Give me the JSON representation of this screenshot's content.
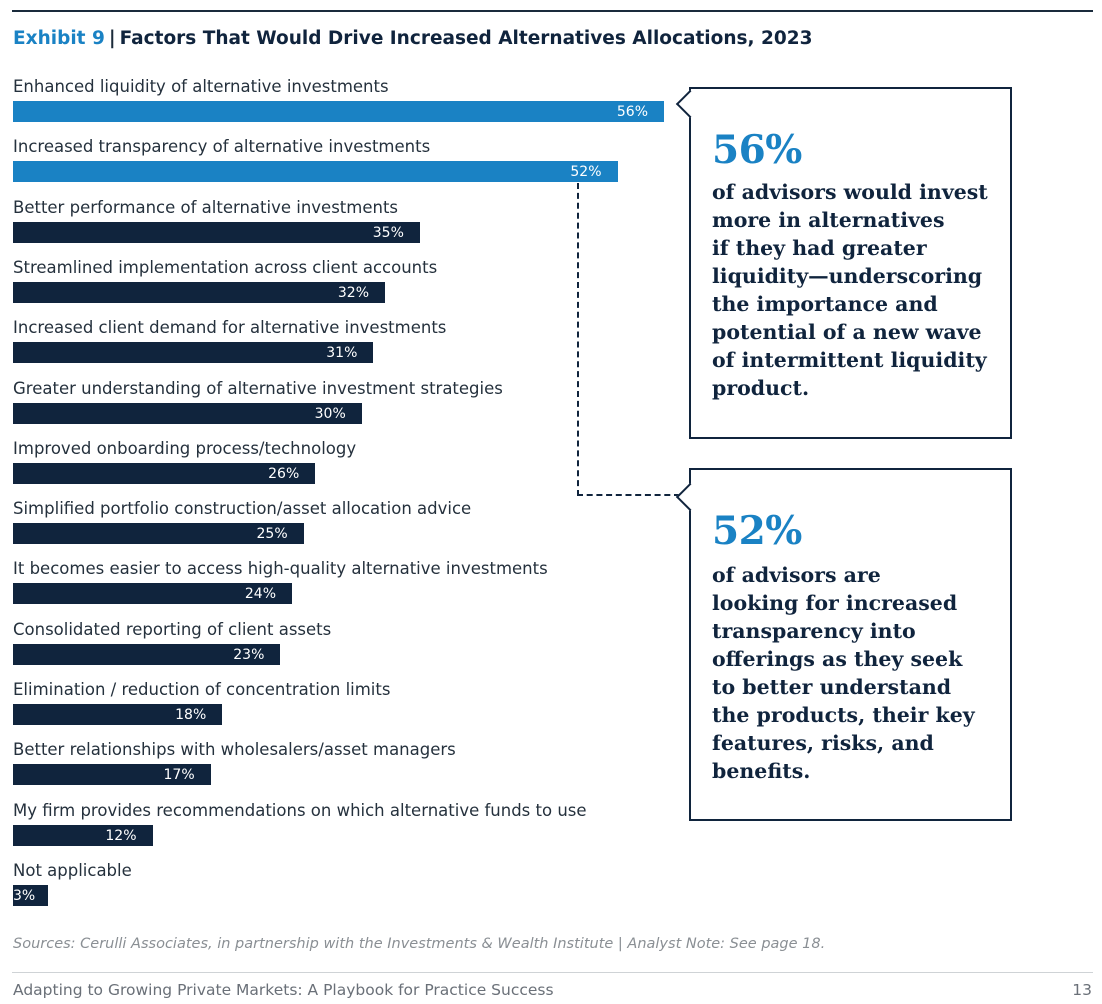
{
  "header": {
    "exhibit": "Exhibit 9",
    "separator": "|",
    "title": "Factors That Would Drive Increased Alternatives Allocations, 2023"
  },
  "chart_data": {
    "type": "bar",
    "orientation": "horizontal",
    "categories": [
      "Enhanced liquidity of alternative investments",
      "Increased transparency of alternative investments",
      "Better performance of alternative investments",
      "Streamlined implementation across client accounts",
      "Increased client demand for alternative investments",
      "Greater understanding of alternative investment strategies",
      "Improved onboarding process/technology",
      "Simplified portfolio construction/asset allocation advice",
      "It becomes easier to access high-quality alternative investments",
      "Consolidated reporting of client assets",
      "Elimination / reduction of concentration limits",
      "Better relationships with wholesalers/asset managers",
      "My firm provides recommendations on which alternative funds to use",
      "Not applicable"
    ],
    "values": [
      56,
      52,
      35,
      32,
      31,
      30,
      26,
      25,
      24,
      23,
      18,
      17,
      12,
      3
    ],
    "value_labels": [
      "56%",
      "52%",
      "35%",
      "32%",
      "31%",
      "30%",
      "26%",
      "25%",
      "24%",
      "23%",
      "18%",
      "17%",
      "12%",
      "3%"
    ],
    "highlight_color": "#1a82c4",
    "base_color": "#10243d",
    "highlighted": [
      0,
      1
    ],
    "xlim": [
      0,
      56
    ]
  },
  "callouts": [
    {
      "stat": "56%",
      "text": "of advisors would invest\nmore in alternatives\nif they had greater\nliquidity—underscoring\nthe importance and\npotential of a new wave\nof intermittent liquidity\nproduct."
    },
    {
      "stat": "52%",
      "text": "of advisors are\nlooking for increased\ntransparency into\nofferings as they seek\nto better understand\nthe products, their key\nfeatures, risks, and\nbenefits."
    }
  ],
  "sources": "Sources: Cerulli Associates, in partnership with the Investments & Wealth Institute | Analyst Note: See page 18.",
  "footer": {
    "title": "Adapting to Growing Private Markets: A Playbook for Practice Success",
    "page": "13"
  }
}
